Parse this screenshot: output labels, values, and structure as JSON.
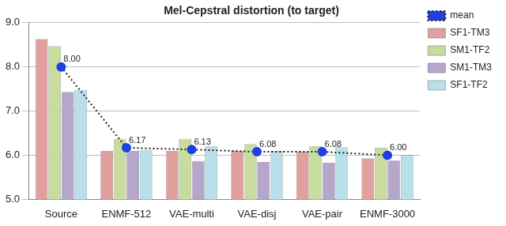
{
  "chart_data": {
    "type": "bar",
    "title": "Mel-Cepstral distortion (to target)",
    "categories": [
      "Source",
      "ENMF-512",
      "VAE-multi",
      "VAE-disj",
      "VAE-pair",
      "ENMF-3000"
    ],
    "series": [
      {
        "name": "SF1-TM3",
        "color": "#e0a09e",
        "values": [
          8.63,
          6.1,
          6.1,
          6.1,
          6.08,
          5.93
        ]
      },
      {
        "name": "SM1-TF2",
        "color": "#c8dc9e",
        "values": [
          8.47,
          6.37,
          6.37,
          6.25,
          6.2,
          6.17
        ]
      },
      {
        "name": "SM1-TM3",
        "color": "#b5a6cc",
        "values": [
          7.43,
          6.1,
          5.87,
          5.85,
          5.83,
          5.88
        ]
      },
      {
        "name": "SF1-TF2",
        "color": "#b9e0ea",
        "values": [
          7.48,
          6.12,
          6.2,
          6.1,
          6.18,
          6.0
        ]
      },
      {
        "name": "mean",
        "type": "line",
        "color": "#1f3fe0",
        "marker": "circle",
        "line_style": "dotted",
        "data_labels": true,
        "values": [
          8.0,
          6.17,
          6.13,
          6.08,
          6.08,
          6.0
        ],
        "value_labels": [
          "8.00",
          "6.17",
          "6.13",
          "6.08",
          "6.08",
          "6.00"
        ]
      }
    ],
    "ylim": [
      5,
      9
    ],
    "yticks": [
      {
        "value": 5,
        "label": "5.0"
      },
      {
        "value": 6,
        "label": "6.0"
      },
      {
        "value": 7,
        "label": "7.0"
      },
      {
        "value": 8,
        "label": "8.0"
      },
      {
        "value": 9,
        "label": "9.0"
      }
    ],
    "grid": true,
    "legend": "top right"
  }
}
